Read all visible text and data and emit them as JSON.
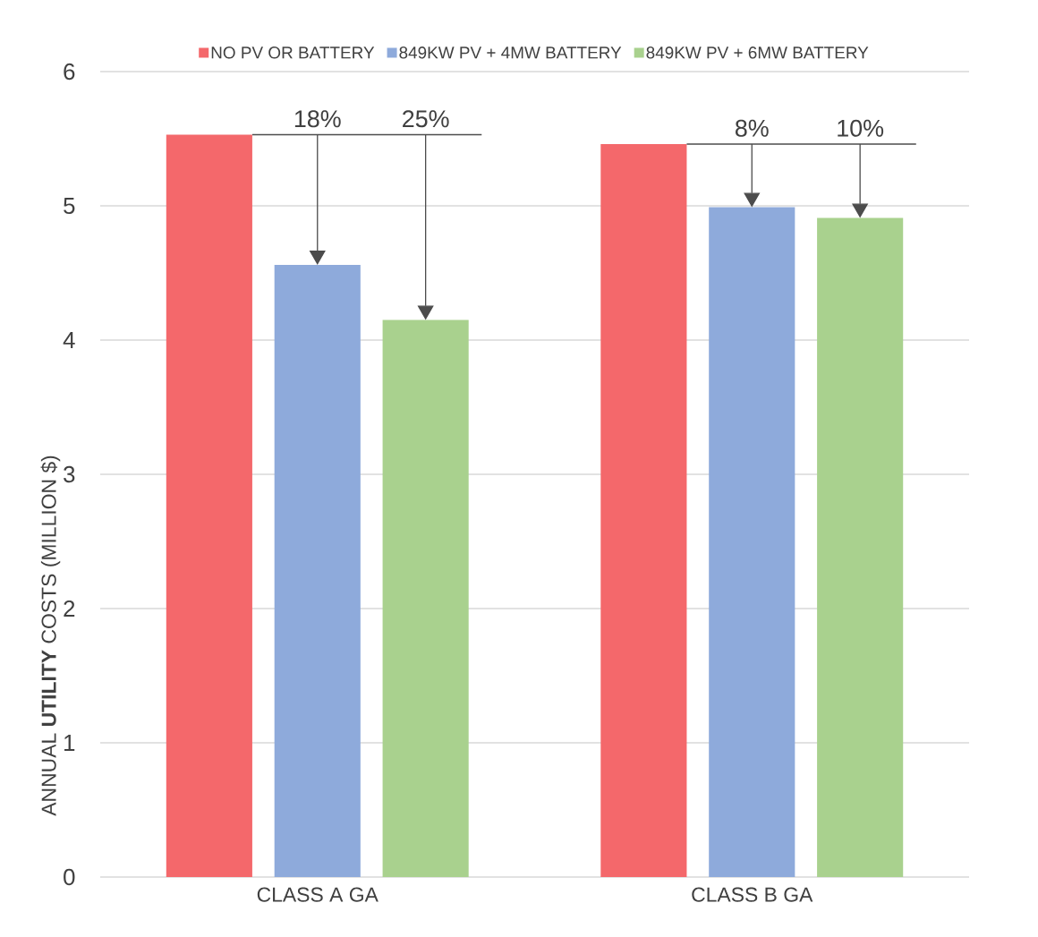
{
  "chart_data": {
    "type": "bar",
    "ylabel": "ANNUAL **UTILITY** COSTS (MILLION $)",
    "categories": [
      "CLASS A GA",
      "CLASS B GA"
    ],
    "series": [
      {
        "name": "NO PV OR BATTERY",
        "color": "#f4686b",
        "values": [
          5.53,
          5.46
        ]
      },
      {
        "name": "849KW PV + 4MW BATTERY",
        "color": "#8eaadb",
        "values": [
          4.56,
          4.99
        ]
      },
      {
        "name": "849KW PV + 6MW BATTERY",
        "color": "#a9d18e",
        "values": [
          4.15,
          4.91
        ]
      }
    ],
    "ylim": [
      0,
      6
    ],
    "yticks": [
      0,
      1,
      2,
      3,
      4,
      5,
      6
    ],
    "grid": "y",
    "legend": "top",
    "annotations": [
      "18%",
      "25%",
      "8%",
      "10%"
    ]
  }
}
